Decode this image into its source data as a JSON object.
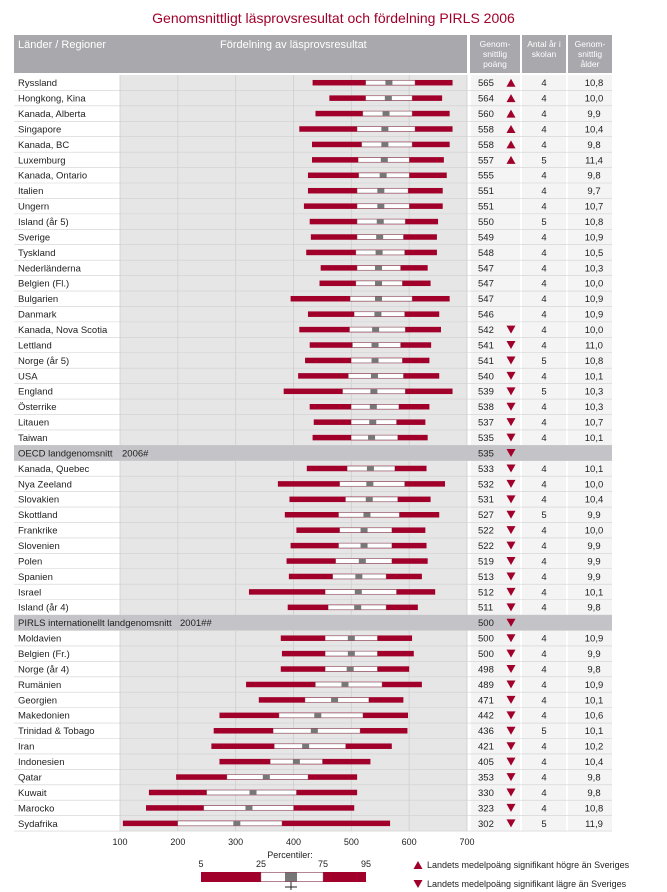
{
  "title": "Genomsnittligt läsprovsresultat och fördelning PIRLS 2006",
  "headers": {
    "country": "Länder / Regioner",
    "distribution": "Fördelning av läsprovsresultat",
    "mean": "Genom-snittlig poäng",
    "years": "Antal år i skolan",
    "age": "Genom-snittlig ålder"
  },
  "legend": {
    "percentiles_label": "Percentiler:",
    "percentile_values": [
      "5",
      "25",
      "75",
      "95"
    ],
    "up_text": "Landets medelpoäng signifikant högre än Sveriges",
    "down_text": "Landets medelpoäng signifikant lägre än Sveriges"
  },
  "colors": {
    "bar": "#a0002a",
    "title": "#a0002a",
    "header_bg": "#a8a8ad",
    "avg_row_bg": "#c4c4c8",
    "plot_bg": "#e6e6e6"
  },
  "chart_data": {
    "type": "bar",
    "subtype": "percentile-range",
    "title": "Genomsnittligt läsprovsresultat och fördelning PIRLS 2006",
    "xlim": [
      100,
      700
    ],
    "xticks": [
      100,
      200,
      300,
      400,
      500,
      600,
      700
    ],
    "rows": [
      {
        "name": "Ryssland",
        "p5": 433,
        "p25": 525,
        "p75": 610,
        "p95": 675,
        "mean": 565,
        "sig": "up",
        "years": "4",
        "age": "10,8"
      },
      {
        "name": "Hongkong, Kina",
        "p5": 462,
        "p25": 525,
        "p75": 605,
        "p95": 657,
        "mean": 564,
        "sig": "up",
        "years": "4",
        "age": "10,0"
      },
      {
        "name": "Kanada, Alberta",
        "p5": 438,
        "p25": 520,
        "p75": 605,
        "p95": 670,
        "mean": 560,
        "sig": "up",
        "years": "4",
        "age": "9,9"
      },
      {
        "name": "Singapore",
        "p5": 410,
        "p25": 510,
        "p75": 610,
        "p95": 675,
        "mean": 558,
        "sig": "up",
        "years": "4",
        "age": "10,4"
      },
      {
        "name": "Kanada, BC",
        "p5": 432,
        "p25": 518,
        "p75": 605,
        "p95": 670,
        "mean": 558,
        "sig": "up",
        "years": "4",
        "age": "9,8"
      },
      {
        "name": "Luxemburg",
        "p5": 432,
        "p25": 512,
        "p75": 600,
        "p95": 660,
        "mean": 557,
        "sig": "up",
        "years": "5",
        "age": "11,4"
      },
      {
        "name": "Kanada, Ontario",
        "p5": 425,
        "p25": 513,
        "p75": 600,
        "p95": 665,
        "mean": 555,
        "sig": "",
        "years": "4",
        "age": "9,8"
      },
      {
        "name": "Italien",
        "p5": 425,
        "p25": 510,
        "p75": 598,
        "p95": 658,
        "mean": 551,
        "sig": "",
        "years": "4",
        "age": "9,7"
      },
      {
        "name": "Ungern",
        "p5": 418,
        "p25": 510,
        "p75": 600,
        "p95": 658,
        "mean": 551,
        "sig": "",
        "years": "4",
        "age": "10,7"
      },
      {
        "name": "Island (år 5)",
        "p5": 428,
        "p25": 510,
        "p75": 593,
        "p95": 650,
        "mean": 550,
        "sig": "",
        "years": "5",
        "age": "10,8"
      },
      {
        "name": "Sverige",
        "p5": 430,
        "p25": 510,
        "p75": 590,
        "p95": 648,
        "mean": 549,
        "sig": "",
        "years": "4",
        "age": "10,9"
      },
      {
        "name": "Tyskland",
        "p5": 422,
        "p25": 508,
        "p75": 592,
        "p95": 648,
        "mean": 548,
        "sig": "",
        "years": "4",
        "age": "10,5"
      },
      {
        "name": "Nederländerna",
        "p5": 447,
        "p25": 510,
        "p75": 585,
        "p95": 632,
        "mean": 547,
        "sig": "",
        "years": "4",
        "age": "10,3"
      },
      {
        "name": "Belgien (Fl.)",
        "p5": 445,
        "p25": 508,
        "p75": 588,
        "p95": 637,
        "mean": 547,
        "sig": "",
        "years": "4",
        "age": "10,0"
      },
      {
        "name": "Bulgarien",
        "p5": 395,
        "p25": 498,
        "p75": 605,
        "p95": 670,
        "mean": 547,
        "sig": "",
        "years": "4",
        "age": "10,9"
      },
      {
        "name": "Danmark",
        "p5": 425,
        "p25": 505,
        "p75": 592,
        "p95": 652,
        "mean": 546,
        "sig": "",
        "years": "4",
        "age": "10,9"
      },
      {
        "name": "Kanada, Nova Scotia",
        "p5": 410,
        "p25": 497,
        "p75": 593,
        "p95": 655,
        "mean": 542,
        "sig": "down",
        "years": "4",
        "age": "10,0"
      },
      {
        "name": "Lettland",
        "p5": 428,
        "p25": 502,
        "p75": 585,
        "p95": 638,
        "mean": 541,
        "sig": "down",
        "years": "4",
        "age": "11,0"
      },
      {
        "name": "Norge (år 5)",
        "p5": 420,
        "p25": 500,
        "p75": 588,
        "p95": 635,
        "mean": 541,
        "sig": "down",
        "years": "5",
        "age": "10,8"
      },
      {
        "name": "USA",
        "p5": 408,
        "p25": 495,
        "p75": 590,
        "p95": 652,
        "mean": 540,
        "sig": "down",
        "years": "4",
        "age": "10,1"
      },
      {
        "name": "England",
        "p5": 383,
        "p25": 485,
        "p75": 593,
        "p95": 675,
        "mean": 539,
        "sig": "down",
        "years": "5",
        "age": "10,3"
      },
      {
        "name": "Österrike",
        "p5": 428,
        "p25": 500,
        "p75": 582,
        "p95": 635,
        "mean": 538,
        "sig": "down",
        "years": "4",
        "age": "10,3"
      },
      {
        "name": "Litauen",
        "p5": 435,
        "p25": 500,
        "p75": 578,
        "p95": 628,
        "mean": 537,
        "sig": "down",
        "years": "4",
        "age": "10,7"
      },
      {
        "name": "Taiwan",
        "p5": 433,
        "p25": 500,
        "p75": 580,
        "p95": 632,
        "mean": 535,
        "sig": "down",
        "years": "4",
        "age": "10,1"
      },
      {
        "name": "OECD landgenomsnitt",
        "note": "2006#",
        "mean": 535,
        "sig": "down",
        "years": "",
        "age": "",
        "avg": true
      },
      {
        "name": "Kanada, Quebec",
        "p5": 423,
        "p25": 493,
        "p75": 575,
        "p95": 630,
        "mean": 533,
        "sig": "down",
        "years": "4",
        "age": "10,1"
      },
      {
        "name": "Nya Zeeland",
        "p5": 373,
        "p25": 480,
        "p75": 592,
        "p95": 662,
        "mean": 532,
        "sig": "down",
        "years": "4",
        "age": "10,0"
      },
      {
        "name": "Slovakien",
        "p5": 393,
        "p25": 490,
        "p75": 580,
        "p95": 637,
        "mean": 531,
        "sig": "down",
        "years": "4",
        "age": "10,4"
      },
      {
        "name": "Skottland",
        "p5": 385,
        "p25": 478,
        "p75": 583,
        "p95": 652,
        "mean": 527,
        "sig": "down",
        "years": "5",
        "age": "9,9"
      },
      {
        "name": "Frankrike",
        "p5": 405,
        "p25": 480,
        "p75": 570,
        "p95": 628,
        "mean": 522,
        "sig": "down",
        "years": "4",
        "age": "10,0"
      },
      {
        "name": "Slovenien",
        "p5": 395,
        "p25": 478,
        "p75": 570,
        "p95": 630,
        "mean": 522,
        "sig": "down",
        "years": "4",
        "age": "9,9"
      },
      {
        "name": "Polen",
        "p5": 388,
        "p25": 473,
        "p75": 570,
        "p95": 632,
        "mean": 519,
        "sig": "down",
        "years": "4",
        "age": "9,9"
      },
      {
        "name": "Spanien",
        "p5": 392,
        "p25": 468,
        "p75": 560,
        "p95": 622,
        "mean": 513,
        "sig": "down",
        "years": "4",
        "age": "9,9"
      },
      {
        "name": "Israel",
        "p5": 323,
        "p25": 455,
        "p75": 578,
        "p95": 645,
        "mean": 512,
        "sig": "down",
        "years": "4",
        "age": "10,1"
      },
      {
        "name": "Island (år 4)",
        "p5": 390,
        "p25": 460,
        "p75": 560,
        "p95": 615,
        "mean": 511,
        "sig": "down",
        "years": "4",
        "age": "9,8"
      },
      {
        "name": "PIRLS internationellt landgenomsnitt",
        "note": "2001##",
        "mean": 500,
        "sig": "down",
        "years": "",
        "age": "",
        "avg": true
      },
      {
        "name": "Moldavien",
        "p5": 378,
        "p25": 455,
        "p75": 545,
        "p95": 605,
        "mean": 500,
        "sig": "down",
        "years": "4",
        "age": "10,9"
      },
      {
        "name": "Belgien (Fr.)",
        "p5": 380,
        "p25": 455,
        "p75": 545,
        "p95": 608,
        "mean": 500,
        "sig": "down",
        "years": "4",
        "age": "9,9"
      },
      {
        "name": "Norge (år 4)",
        "p5": 378,
        "p25": 455,
        "p75": 545,
        "p95": 600,
        "mean": 498,
        "sig": "down",
        "years": "4",
        "age": "9,8"
      },
      {
        "name": "Rumänien",
        "p5": 318,
        "p25": 438,
        "p75": 553,
        "p95": 622,
        "mean": 489,
        "sig": "down",
        "years": "4",
        "age": "10,9"
      },
      {
        "name": "Georgien",
        "p5": 340,
        "p25": 420,
        "p75": 530,
        "p95": 590,
        "mean": 471,
        "sig": "down",
        "years": "4",
        "age": "10,1"
      },
      {
        "name": "Makedonien",
        "p5": 272,
        "p25": 375,
        "p75": 520,
        "p95": 598,
        "mean": 442,
        "sig": "down",
        "years": "4",
        "age": "10,6"
      },
      {
        "name": "Trinidad & Tobago",
        "p5": 262,
        "p25": 365,
        "p75": 515,
        "p95": 597,
        "mean": 436,
        "sig": "down",
        "years": "5",
        "age": "10,1"
      },
      {
        "name": "Iran",
        "p5": 258,
        "p25": 367,
        "p75": 490,
        "p95": 570,
        "mean": 421,
        "sig": "down",
        "years": "4",
        "age": "10,2"
      },
      {
        "name": "Indonesien",
        "p5": 272,
        "p25": 360,
        "p75": 450,
        "p95": 533,
        "mean": 405,
        "sig": "down",
        "years": "4",
        "age": "10,4"
      },
      {
        "name": "Qatar",
        "p5": 197,
        "p25": 285,
        "p75": 425,
        "p95": 510,
        "mean": 353,
        "sig": "down",
        "years": "4",
        "age": "9,8"
      },
      {
        "name": "Kuwait",
        "p5": 150,
        "p25": 250,
        "p75": 405,
        "p95": 510,
        "mean": 330,
        "sig": "down",
        "years": "4",
        "age": "9,8"
      },
      {
        "name": "Marocko",
        "p5": 145,
        "p25": 245,
        "p75": 400,
        "p95": 505,
        "mean": 323,
        "sig": "down",
        "years": "4",
        "age": "10,8"
      },
      {
        "name": "Sydafrika",
        "p5": 105,
        "p25": 200,
        "p75": 380,
        "p95": 567,
        "mean": 302,
        "sig": "down",
        "years": "5",
        "age": "11,9"
      }
    ]
  }
}
